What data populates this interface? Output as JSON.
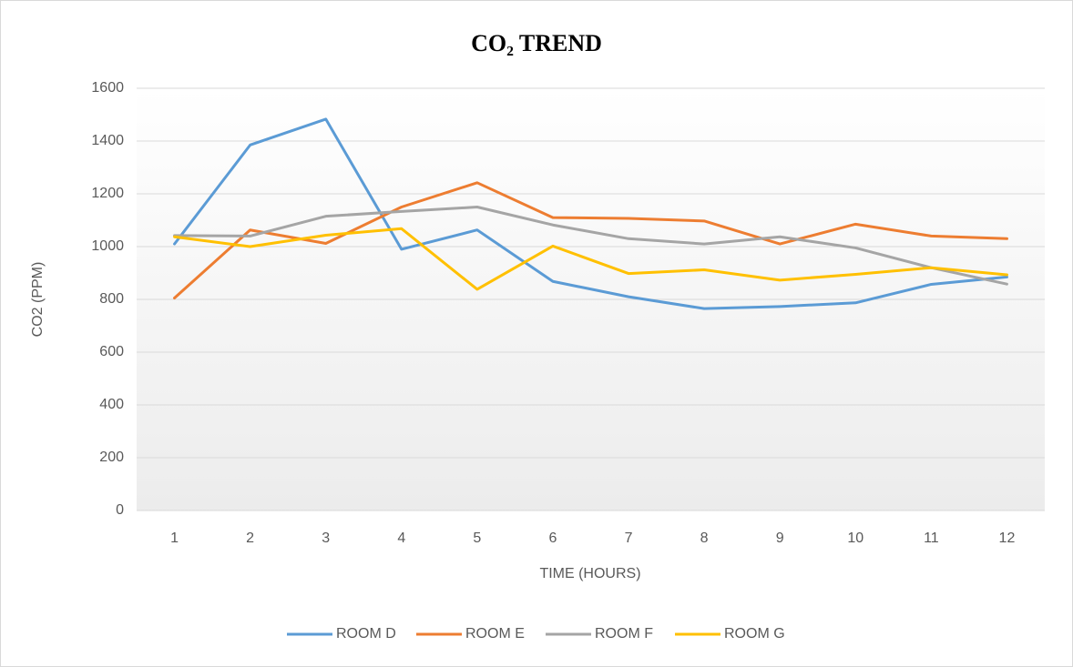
{
  "chart_data": {
    "type": "line",
    "title": "CO₂ TREND",
    "x_label": "TIME (HOURS)",
    "y_label": "CO2 (PPM)",
    "categories": [
      "1",
      "2",
      "3",
      "4",
      "5",
      "6",
      "7",
      "8",
      "9",
      "10",
      "11",
      "12"
    ],
    "series": [
      {
        "name": "ROOM D",
        "color": "#5b9bd5",
        "values": [
          1010,
          1385,
          1483,
          990,
          1063,
          868,
          810,
          765,
          773,
          787,
          857,
          885
        ]
      },
      {
        "name": "ROOM E",
        "color": "#ed7d31",
        "values": [
          805,
          1063,
          1012,
          1150,
          1242,
          1110,
          1107,
          1097,
          1010,
          1085,
          1040,
          1030
        ]
      },
      {
        "name": "ROOM F",
        "color": "#a5a5a5",
        "values": [
          1042,
          1040,
          1115,
          1133,
          1150,
          1082,
          1030,
          1010,
          1037,
          995,
          920,
          858
        ]
      },
      {
        "name": "ROOM G",
        "color": "#ffc000",
        "values": [
          1037,
          1000,
          1043,
          1068,
          838,
          1002,
          898,
          912,
          873,
          895,
          920,
          893
        ]
      }
    ],
    "ylim": [
      0,
      1600
    ],
    "yticks": [
      0,
      200,
      400,
      600,
      800,
      1000,
      1200,
      1400,
      1600
    ],
    "grid": true,
    "legend": "bottom"
  }
}
